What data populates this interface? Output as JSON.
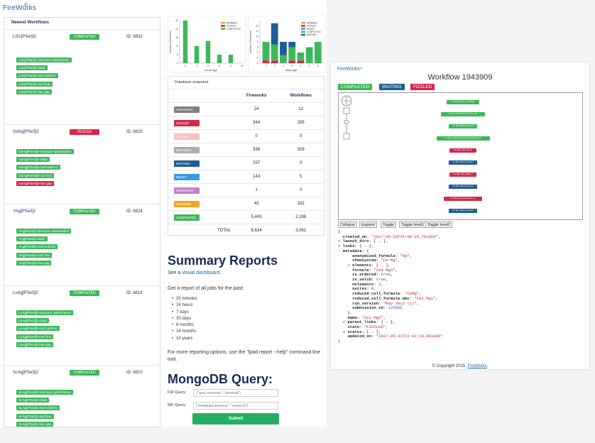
{
  "logo": "FireWorks",
  "newest_workflows": {
    "heading": "Newest Workflows",
    "items": [
      {
        "name": "LiSc[PSe3]2",
        "state": "COMPLETED",
        "id": "ID: 6832",
        "fireworks": [
          {
            "label": "LiSc[PSe3]2-structure optimization",
            "state": "COMPLETED"
          },
          {
            "label": "LiSc[PSe3]2-static",
            "state": "COMPLETED"
          },
          {
            "label": "LiSc[PSe3]2-nscf uniform",
            "state": "COMPLETED"
          },
          {
            "label": "LiSc[PSe3]2-nscf line",
            "state": "COMPLETED"
          },
          {
            "label": "LiSc[PSe3]2-hse gap",
            "state": "COMPLETED"
          }
        ]
      },
      {
        "name": "GdAg[PSe3]2",
        "state": "FIZZLED",
        "id": "ID: 6825",
        "fireworks": [
          {
            "label": "GdAg[PSe3]2-structure optimization",
            "state": "COMPLETED"
          },
          {
            "label": "GdAg[PSe3]2-static",
            "state": "COMPLETED"
          },
          {
            "label": "GdAg[PSe3]2-nscf uniform",
            "state": "COMPLETED"
          },
          {
            "label": "GdAg[PSe3]2-nscf line",
            "state": "COMPLETED"
          },
          {
            "label": "GdAg[PSe3]2-hse gap",
            "state": "FIZZLED"
          }
        ]
      },
      {
        "name": "YAg[PSe3]2",
        "state": "COMPLETED",
        "id": "ID: 6824",
        "fireworks": [
          {
            "label": "YAg[PSe3]2-structure optimization",
            "state": "COMPLETED"
          },
          {
            "label": "YAg[PSe3]2-static",
            "state": "COMPLETED"
          },
          {
            "label": "YAg[PSe3]2-nscf uniform",
            "state": "COMPLETED"
          },
          {
            "label": "YAg[PSe3]2-nscf line",
            "state": "COMPLETED"
          },
          {
            "label": "YAg[PSe3]2-hse gap",
            "state": "COMPLETED"
          }
        ]
      },
      {
        "name": "LuAg[PSe3]2",
        "state": "COMPLETED",
        "id": "ID: 6816",
        "fireworks": [
          {
            "label": "LuAg[PSe3]2-structure optimization",
            "state": "COMPLETED"
          },
          {
            "label": "LuAg[PSe3]2-static",
            "state": "COMPLETED"
          },
          {
            "label": "LuAg[PSe3]2-nscf uniform",
            "state": "COMPLETED"
          },
          {
            "label": "LuAg[PSe3]2-nscf line",
            "state": "COMPLETED"
          },
          {
            "label": "LuAg[PSe3]2-hse gap",
            "state": "COMPLETED"
          }
        ]
      },
      {
        "name": "ScAg[PSe3]2",
        "state": "COMPLETED",
        "id": "ID: 6810",
        "fireworks": [
          {
            "label": "ScAg[PSe3]2-structure optimization",
            "state": "COMPLETED"
          },
          {
            "label": "ScAg[PSe3]2-static",
            "state": "COMPLETED"
          },
          {
            "label": "ScAg[PSe3]2-nscf uniform",
            "state": "COMPLETED"
          },
          {
            "label": "ScAg[PSe3]2-nscf line",
            "state": "COMPLETED"
          },
          {
            "label": "ScAg[PSe3]2-hse gap",
            "state": "COMPLETED"
          }
        ]
      }
    ]
  },
  "colors": {
    "COMPLETED": "#3cb85a",
    "FIZZLED": "#d6264a",
    "ARCHIVED": "#7f7f7f",
    "PAUSED": "#f6c0c0",
    "DEFUSED": "#a9adb2",
    "WAITING": "#1f5d94",
    "READY": "#3a9ae0",
    "RESERVED": "#c27fc9",
    "RUNNING": "#f0a623"
  },
  "chart_data": [
    {
      "type": "bar",
      "xlabel": "hours ago",
      "ylabel": "number of fireworks",
      "xticks": [
        "0",
        "2",
        "4",
        "6",
        "8",
        "10"
      ],
      "yticks": [
        "0",
        "5",
        "10",
        "15",
        "20",
        "25"
      ],
      "ylim": [
        0,
        25
      ],
      "legend": [
        "RUNNING",
        "FIZZLED",
        "COMPLETED"
      ],
      "legend_position": "top-right",
      "categories": [
        "0",
        "1",
        "2",
        "3",
        "4"
      ],
      "series": [
        {
          "name": "RUNNING",
          "values": [
            0,
            0,
            0,
            0,
            0
          ]
        },
        {
          "name": "FIZZLED",
          "values": [
            2,
            0,
            0,
            0,
            0
          ]
        },
        {
          "name": "COMPLETED",
          "values": [
            26,
            10,
            13,
            5,
            5
          ]
        }
      ]
    },
    {
      "type": "bar",
      "xlabel": "days ago",
      "ylabel": "number of fireworks",
      "xticks": [
        "0",
        "1",
        "2",
        "3",
        "4",
        "5",
        "6"
      ],
      "yticks": [
        "0",
        "2",
        "4",
        "6",
        "8",
        "10",
        "12",
        "14"
      ],
      "ylim": [
        0,
        16
      ],
      "legend": [
        "RUNNING",
        "FIZZLED",
        "READY",
        "COMPLETED",
        "WAITING"
      ],
      "legend_position": "top-right",
      "categories": [
        "0",
        "1",
        "2",
        "3",
        "4",
        "5",
        "6"
      ],
      "series": [
        {
          "name": "RUNNING",
          "values": [
            0,
            0,
            0,
            0,
            0,
            0,
            0
          ]
        },
        {
          "name": "FIZZLED",
          "values": [
            1,
            1,
            0,
            1,
            1,
            0,
            0
          ]
        },
        {
          "name": "READY",
          "values": [
            0,
            0,
            0,
            0,
            0,
            0,
            0
          ]
        },
        {
          "name": "COMPLETED",
          "values": [
            7,
            6,
            3,
            5,
            3,
            6,
            8
          ]
        },
        {
          "name": "WAITING",
          "values": [
            0,
            8,
            5,
            2,
            0,
            0,
            0
          ]
        }
      ]
    }
  ],
  "db_snapshot": {
    "title": "Database snapshot",
    "headers": [
      "",
      "Fireworks",
      "Workflows"
    ],
    "rows": [
      {
        "state": "ARCHIVED",
        "fireworks": "24",
        "workflows": "12"
      },
      {
        "state": "FIZZLED",
        "fireworks": "344",
        "workflows": "335"
      },
      {
        "state": "PAUSED",
        "fireworks": "0",
        "workflows": "0"
      },
      {
        "state": "DEFUSED",
        "fireworks": "339",
        "workflows": "329"
      },
      {
        "state": "WAITING",
        "fireworks": "297",
        "workflows": "0"
      },
      {
        "state": "READY",
        "fireworks": "143",
        "workflows": "5"
      },
      {
        "state": "RESERVED",
        "fireworks": "1",
        "workflows": "0"
      },
      {
        "state": "RUNNING",
        "fireworks": "43",
        "workflows": "182"
      },
      {
        "state": "COMPLETED",
        "fireworks": "5,443",
        "workflows": "2,198"
      }
    ],
    "total": {
      "label": "TOTAL",
      "fireworks": "6,634",
      "workflows": "3,061"
    }
  },
  "summary": {
    "title": "Summary Reports",
    "see_prefix": "See a ",
    "see_link": "visual dashboard",
    "see_suffix": ".",
    "report_text": "Get a report of all jobs for the past:",
    "periods": [
      "30 minutes",
      "24 hours",
      "7 days",
      "30 days",
      "6 months",
      "24 months",
      "10 years"
    ],
    "more_text": "For more reporting options, use the \"lpad report --help\" command line tool."
  },
  "mongo": {
    "title": "MongoDB Query:",
    "fw_label": "FW Query:",
    "fw_placeholder": "{\"spec.somevar\": \"someval\"}",
    "wf_label": "WF Query:",
    "wf_placeholder": "{\"metadata.somevar\": \"someval\"}",
    "submit": "Submit"
  },
  "workflow_detail": {
    "logo": "FireWorks",
    "title": "Workflow 1943909",
    "badges": [
      {
        "label": "COMPLETED",
        "state": "COMPLETED"
      },
      {
        "label": "WAITING",
        "state": "WAITING"
      },
      {
        "label": "FIZZLED",
        "state": "FIZZLED"
      }
    ],
    "nodes": [
      {
        "label": "Ce1 Mg4--add_to_fw_database",
        "state": "COMPLETED"
      },
      {
        "label": "Ce1 Mg4--static_optimize_structure_gen",
        "state": "COMPLETED"
      },
      {
        "label": "Ce1 Mg4--static_db_insertion",
        "state": "COMPLETED"
      },
      {
        "label": "Ce1 Mg4--relaxation_add_optimized_structure_db",
        "state": "COMPLETED"
      },
      {
        "label": "Ce1 Mg4--vasp_static_sf",
        "state": "FIZZLED"
      },
      {
        "label": "Ce1 Mg4--static_db_insertion",
        "state": "WAITING"
      },
      {
        "label": "Ce1 Mg4--vasp_uniform_sf",
        "state": "FIZZLED"
      },
      {
        "label": "Ce1 Mg4--static_db_insertion",
        "state": "WAITING"
      },
      {
        "label": "Ce1 Mg4--vasp_band_structure_sf",
        "state": "FIZZLED"
      },
      {
        "label": "Ce1 Mg4--static_db_insertion",
        "state": "WAITING"
      }
    ],
    "buttons": [
      "Collapse",
      "Expand",
      "Toggle",
      "Toggle level1",
      "Toggle level2"
    ],
    "copyright_prefix": "© Copyright 2015, ",
    "copyright_link": "FireWorks",
    "copyright_suffix": "."
  }
}
